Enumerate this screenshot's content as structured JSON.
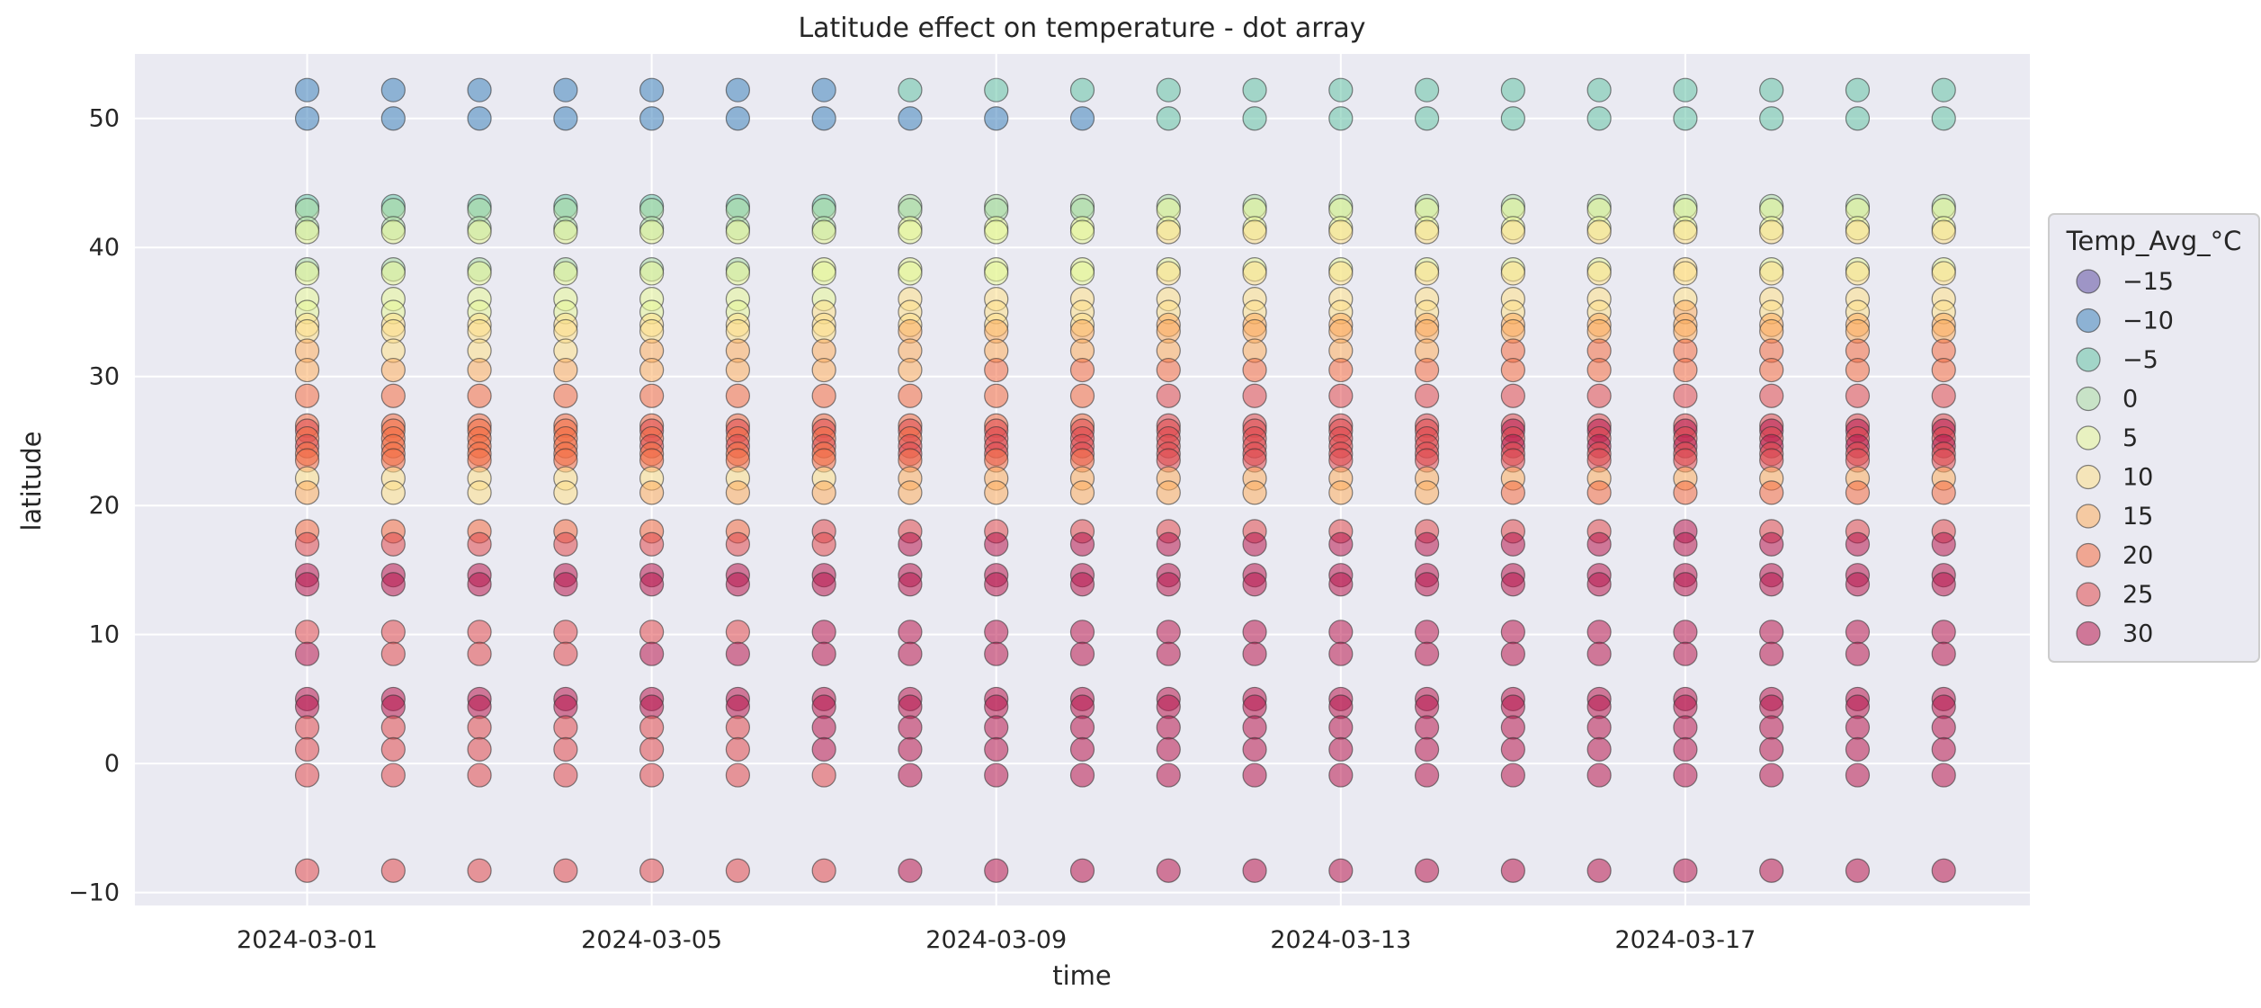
{
  "chart_data": {
    "type": "scatter",
    "title": "Latitude effect on temperature - dot array",
    "xlabel": "time",
    "ylabel": "latitude",
    "x_dates": [
      "2024-03-01",
      "2024-03-02",
      "2024-03-03",
      "2024-03-04",
      "2024-03-05",
      "2024-03-06",
      "2024-03-07",
      "2024-03-08",
      "2024-03-09",
      "2024-03-10",
      "2024-03-11",
      "2024-03-12",
      "2024-03-13",
      "2024-03-14",
      "2024-03-15",
      "2024-03-16",
      "2024-03-17",
      "2024-03-18",
      "2024-03-19",
      "2024-03-20"
    ],
    "x_ticks": [
      "2024-03-01",
      "2024-03-05",
      "2024-03-09",
      "2024-03-13",
      "2024-03-17"
    ],
    "xlim": [
      "2024-02-28",
      "2024-03-21"
    ],
    "ylim": [
      -11,
      55
    ],
    "y_ticks": [
      -10,
      0,
      10,
      20,
      30,
      40,
      50
    ],
    "grid": true,
    "legend": {
      "title": "Temp_Avg_°C",
      "placement": "right",
      "entries": [
        {
          "label": "−15",
          "value": -15,
          "color": "#5e4fa2"
        },
        {
          "label": "−10",
          "value": -10,
          "color": "#3f84bc"
        },
        {
          "label": "−5",
          "value": -5,
          "color": "#66c2a5"
        },
        {
          "label": "0",
          "value": 0,
          "color": "#abdda4"
        },
        {
          "label": "5",
          "value": 5,
          "color": "#e6f598"
        },
        {
          "label": "10",
          "value": 10,
          "color": "#fee08b"
        },
        {
          "label": "15",
          "value": 15,
          "color": "#fdae61"
        },
        {
          "label": "20",
          "value": 20,
          "color": "#f46d43"
        },
        {
          "label": "25",
          "value": 25,
          "color": "#e04a4e"
        },
        {
          "label": "30",
          "value": 30,
          "color": "#b8174f"
        }
      ]
    },
    "latitudes": [
      52.2,
      50.0,
      43.2,
      42.9,
      41.5,
      41.2,
      38.3,
      38.0,
      36.0,
      35.0,
      34.0,
      33.5,
      32.0,
      30.5,
      28.5,
      26.2,
      25.8,
      25.2,
      24.6,
      24.0,
      23.5,
      22.1,
      21.0,
      18.0,
      17.0,
      14.6,
      13.9,
      10.2,
      8.5,
      5.0,
      4.4,
      2.8,
      1.1,
      -0.9,
      -8.3
    ],
    "base_temps": [
      -8,
      -10,
      -3,
      0,
      2,
      5,
      3,
      5,
      7,
      8,
      10,
      12,
      14,
      16,
      20,
      20,
      24,
      21,
      24,
      22,
      20,
      12,
      14,
      23,
      27,
      30,
      30,
      28,
      29,
      30,
      30,
      28,
      28,
      27,
      27
    ],
    "series_temp_offsets": [
      -1,
      -2,
      -2,
      -2,
      -1,
      -1,
      0,
      1,
      2,
      2,
      3,
      3,
      3,
      3,
      4,
      4,
      5,
      4,
      4,
      4
    ]
  }
}
